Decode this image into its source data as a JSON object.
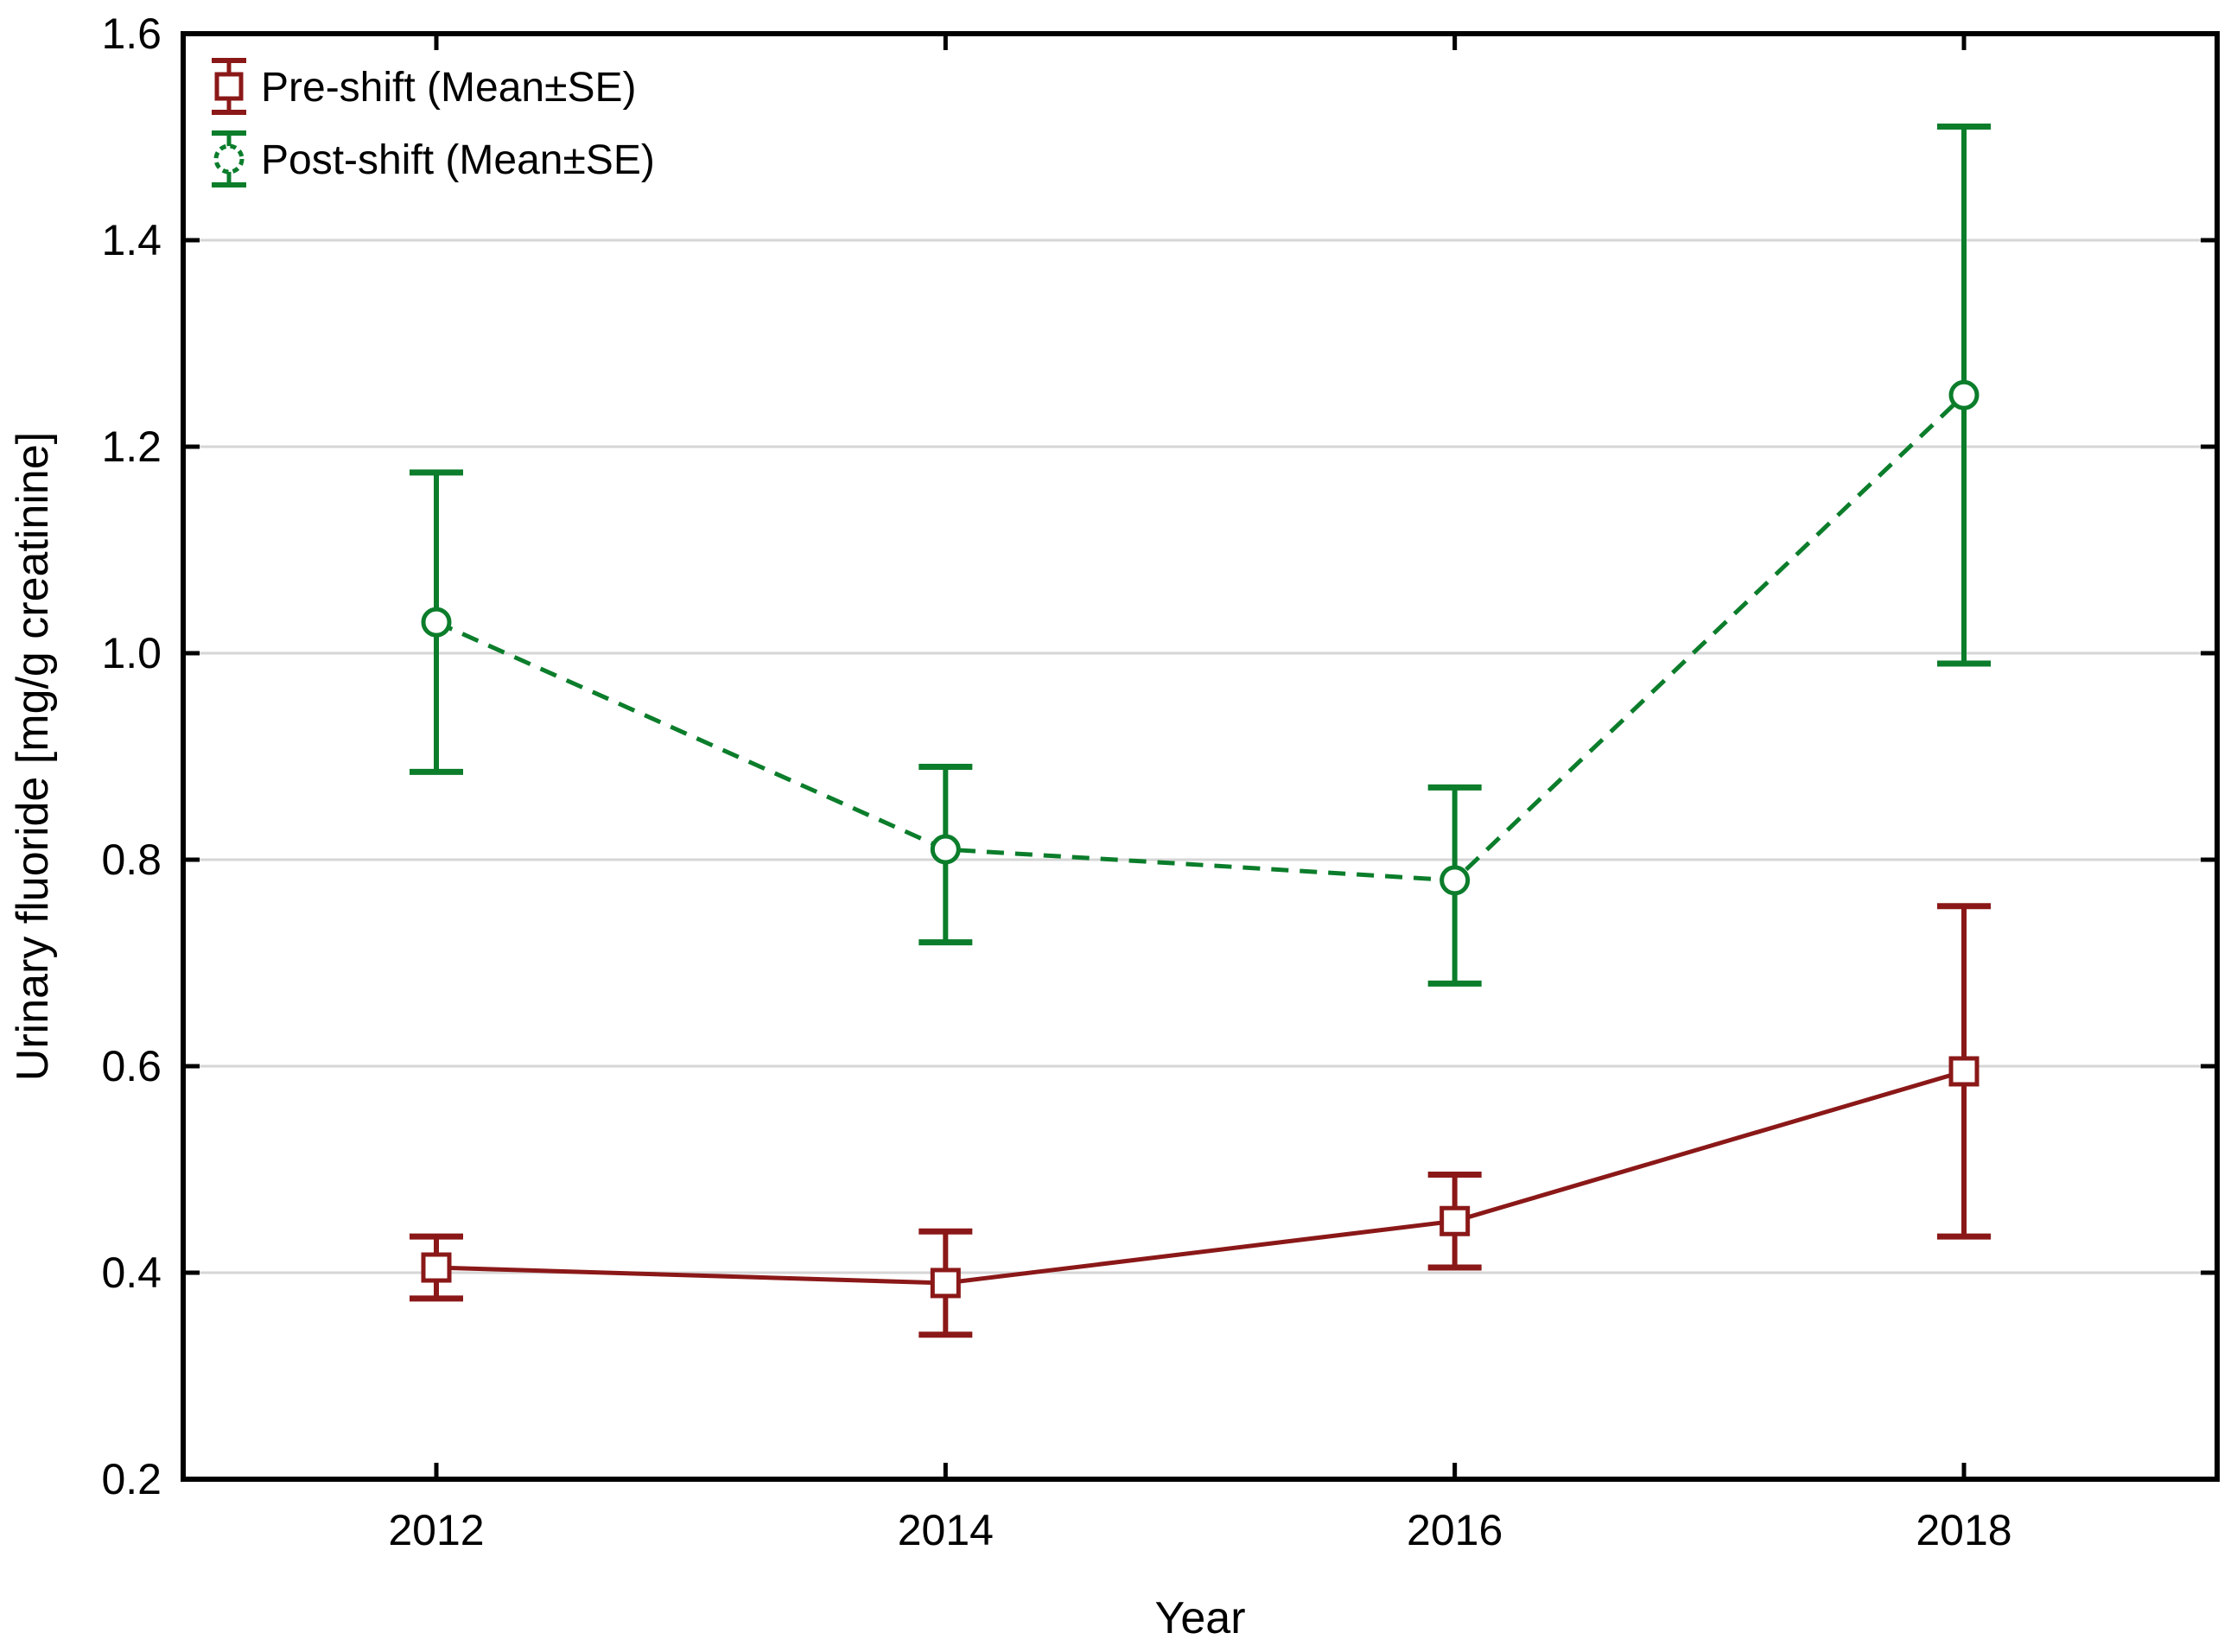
{
  "figure": {
    "background": "#ffffff",
    "frame_color": "#000000",
    "gridline_color": "#d6d6d6",
    "tick_color": "#000000",
    "text_color": "#000000"
  },
  "chart_data": {
    "type": "line",
    "title": "",
    "xlabel": "Year",
    "ylabel": "Urinary fluoride [mg/g creatinine]",
    "x_categories": [
      "2012",
      "2014",
      "2016",
      "2018"
    ],
    "ylim": [
      0.2,
      1.6
    ],
    "y_ticks": [
      0.2,
      0.4,
      0.6,
      0.8,
      1.0,
      1.2,
      1.4,
      1.6
    ],
    "y_tick_labels": [
      "0.2",
      "0.4",
      "0.6",
      "0.8",
      "1.0",
      "1.2",
      "1.4",
      "1.6"
    ],
    "grid": "horizontal",
    "legend_position": "top-left-inside",
    "error_bar_type": "Mean±SE",
    "series": [
      {
        "name": "Pre-shift (Mean±SE)",
        "color": "#8b1818",
        "line_style": "solid",
        "marker": "square",
        "means": [
          0.405,
          0.39,
          0.45,
          0.595
        ],
        "upper": [
          0.435,
          0.44,
          0.495,
          0.755
        ],
        "lower": [
          0.375,
          0.34,
          0.405,
          0.435
        ]
      },
      {
        "name": "Post-shift (Mean±SE)",
        "color": "#0b7d2b",
        "line_style": "dashed",
        "marker": "circle",
        "means": [
          1.03,
          0.81,
          0.78,
          1.25
        ],
        "upper": [
          1.175,
          0.89,
          0.87,
          1.51
        ],
        "lower": [
          0.885,
          0.72,
          0.68,
          0.99
        ]
      }
    ]
  }
}
